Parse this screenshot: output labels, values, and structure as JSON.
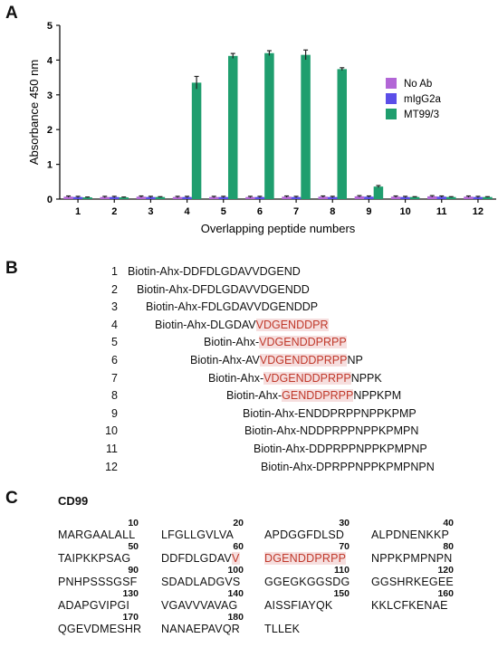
{
  "panels": {
    "a": "A",
    "b": "B",
    "c": "C"
  },
  "chart_data": {
    "type": "bar",
    "ylabel": "Absorbance 450 nm",
    "xlabel": "Overlapping peptide numbers",
    "ylim": [
      0,
      5
    ],
    "yticks": [
      "0",
      "1",
      "2",
      "3",
      "4",
      "5"
    ],
    "categories": [
      "1",
      "2",
      "3",
      "4",
      "5",
      "6",
      "7",
      "8",
      "9",
      "10",
      "11",
      "12"
    ],
    "legend_position": "right",
    "series": [
      {
        "name": "No Ab",
        "color": "#b266d6",
        "values": [
          0.07,
          0.06,
          0.07,
          0.06,
          0.06,
          0.06,
          0.07,
          0.07,
          0.08,
          0.07,
          0.08,
          0.07
        ],
        "errors": [
          0.02,
          0.02,
          0.02,
          0.02,
          0.02,
          0.02,
          0.02,
          0.02,
          0.02,
          0.02,
          0.02,
          0.02
        ]
      },
      {
        "name": "mIgG2a",
        "color": "#5b4ee8",
        "values": [
          0.06,
          0.06,
          0.06,
          0.06,
          0.06,
          0.06,
          0.06,
          0.06,
          0.07,
          0.06,
          0.07,
          0.06
        ],
        "errors": [
          0.02,
          0.02,
          0.02,
          0.02,
          0.02,
          0.02,
          0.02,
          0.02,
          0.02,
          0.02,
          0.02,
          0.02
        ]
      },
      {
        "name": "MT99/3",
        "color": "#1f9e6e",
        "values": [
          0.05,
          0.05,
          0.06,
          3.35,
          4.12,
          4.2,
          4.15,
          3.74,
          0.36,
          0.06,
          0.06,
          0.06
        ],
        "errors": [
          0.01,
          0.01,
          0.01,
          0.18,
          0.07,
          0.07,
          0.14,
          0.04,
          0.03,
          0.01,
          0.01,
          0.01
        ]
      }
    ]
  },
  "peptides": [
    {
      "num": "1",
      "prefix": "Biotin-Ahx-",
      "black": "DDFDLGDAVVDGEND",
      "red": "",
      "tail": ""
    },
    {
      "num": "2",
      "prefix": "Biotin-Ahx-",
      "black": "DFDLGDAVVDGENDD",
      "red": "",
      "tail": ""
    },
    {
      "num": "3",
      "prefix": "Biotin-Ahx-",
      "black": "FDLGDAVVDGENDDP",
      "red": "",
      "tail": ""
    },
    {
      "num": "4",
      "prefix": "Biotin-Ahx-",
      "black": "DLGDAV",
      "red": "VDGENDDPR",
      "tail": ""
    },
    {
      "num": "5",
      "prefix": "Biotin-Ahx-",
      "black": "",
      "red": "VDGENDDPRPP",
      "tail": ""
    },
    {
      "num": "6",
      "prefix": "Biotin-Ahx-",
      "black": "AV",
      "red": "VDGENDDPRPP",
      "tail": "NP"
    },
    {
      "num": "7",
      "prefix": "Biotin-Ahx-",
      "black": "",
      "red": "VDGENDDPRPP",
      "tail": "NPPK"
    },
    {
      "num": "8",
      "prefix": "Biotin-Ahx-",
      "black": "",
      "red": "GENDDPRPP",
      "tail": "NPPKPM"
    },
    {
      "num": "9",
      "prefix": "Biotin-Ahx-",
      "black": "ENDDPRPPNPPKPMP",
      "red": "",
      "tail": ""
    },
    {
      "num": "10",
      "prefix": "Biotin-Ahx-",
      "black": "NDDPRPPNPPKPMPN",
      "red": "",
      "tail": ""
    },
    {
      "num": "11",
      "prefix": "Biotin-Ahx-",
      "black": "DDPRPPNPPKPMPNP",
      "red": "",
      "tail": ""
    },
    {
      "num": "12",
      "prefix": "Biotin-Ahx-",
      "black": "DPRPPNPPKPMPNPN",
      "red": "",
      "tail": ""
    }
  ],
  "cd99": {
    "title": "CD99",
    "rows": [
      [
        {
          "num": "10",
          "black": "MARGAALALL",
          "red": ""
        },
        {
          "num": "20",
          "black": "LFGLLGVLVA",
          "red": ""
        },
        {
          "num": "30",
          "black": "APDGGFDLSD",
          "red": ""
        },
        {
          "num": "40",
          "black": "ALPDNENKKP",
          "red": ""
        }
      ],
      [
        {
          "num": "50",
          "black": "TAIPKKPSAG",
          "red": ""
        },
        {
          "num": "60",
          "black": "DDFDLGDAV",
          "red": "V"
        },
        {
          "num": "70",
          "black": "",
          "red": "DGENDDPRPP"
        },
        {
          "num": "80",
          "black": "NPPKPMPNPN",
          "red": ""
        }
      ],
      [
        {
          "num": "90",
          "black": "PNHPSSSGSF",
          "red": ""
        },
        {
          "num": "100",
          "black": "SDADLADGVS",
          "red": ""
        },
        {
          "num": "110",
          "black": "GGEGKGGSDG",
          "red": ""
        },
        {
          "num": "120",
          "black": "GGSHRKEGEE",
          "red": ""
        }
      ],
      [
        {
          "num": "130",
          "black": "ADAPGVIPGI",
          "red": ""
        },
        {
          "num": "140",
          "black": "VGAVVVAVAG",
          "red": ""
        },
        {
          "num": "150",
          "black": "AISSFIAYQK",
          "red": ""
        },
        {
          "num": "160",
          "black": "KKLCFKENAE",
          "red": ""
        }
      ],
      [
        {
          "num": "170",
          "black": "QGEVDMESHR",
          "red": ""
        },
        {
          "num": "180",
          "black": "NANAEPAVQR",
          "red": ""
        },
        {
          "num": "",
          "black": "TLLEK",
          "red": ""
        },
        {
          "num": "",
          "black": "",
          "red": ""
        }
      ]
    ]
  }
}
